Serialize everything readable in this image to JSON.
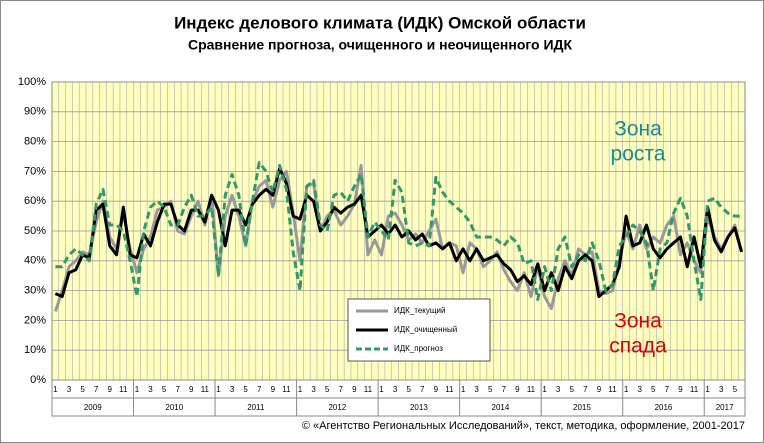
{
  "chart_data": {
    "type": "line",
    "title": "Индекс делового климата (ИДК) Омской области",
    "subtitle": "Сравнение прогноза, очищенного и неочищенного ИДК",
    "categories": [
      "1",
      null,
      "3",
      null,
      "5",
      null,
      "7",
      null,
      "9",
      null,
      "11",
      null,
      "1",
      null,
      "3",
      null,
      "5",
      null,
      "7",
      null,
      "9",
      null,
      "11",
      null,
      "1",
      null,
      "3",
      null,
      "5",
      null,
      "7",
      null,
      "9",
      null,
      "11",
      null,
      "1",
      null,
      "3",
      null,
      "5",
      null,
      "7",
      null,
      "9",
      null,
      "11",
      null,
      "1",
      null,
      "3",
      null,
      "5",
      null,
      "7",
      null,
      "9",
      null,
      "11",
      null,
      "1",
      null,
      "3",
      null,
      "5",
      null,
      "7",
      null,
      "9",
      null,
      "11",
      null,
      "1",
      null,
      "3",
      null,
      "5",
      null,
      "7",
      null,
      "9",
      null,
      "11",
      null,
      "1",
      null,
      "3",
      null,
      "5",
      null,
      "7",
      null,
      "9",
      null,
      "11",
      null,
      "1",
      null,
      "3",
      null,
      "5",
      null
    ],
    "years": [
      "2009",
      "2010",
      "2011",
      "2012",
      "2013",
      "2014",
      "2015",
      "2016",
      "2017"
    ],
    "series": [
      {
        "name": "ИДК_текущий",
        "color": "#999999",
        "dash": false,
        "values": [
          23,
          30,
          38,
          40,
          43,
          42,
          53,
          60,
          48,
          44,
          56,
          44,
          36,
          44,
          48,
          57,
          58,
          60,
          50,
          49,
          55,
          60,
          52,
          62,
          35,
          55,
          62,
          55,
          45,
          60,
          65,
          67,
          58,
          67,
          70,
          56,
          40,
          65,
          66,
          50,
          55,
          57,
          52,
          55,
          59,
          72,
          42,
          47,
          42,
          55,
          56,
          52,
          47,
          49,
          46,
          50,
          54,
          44,
          46,
          45,
          36,
          46,
          44,
          38,
          40,
          43,
          37,
          33,
          30,
          36,
          28,
          38,
          28,
          24,
          34,
          40,
          35,
          44,
          42,
          43,
          30,
          29,
          30,
          40,
          50,
          44,
          52,
          44,
          48,
          46,
          52,
          55,
          42,
          46,
          40,
          36,
          55,
          48,
          44,
          48,
          52,
          43
        ]
      },
      {
        "name": "ИДК_очищенный",
        "color": "#000000",
        "dash": false,
        "values": [
          29,
          28,
          36,
          37,
          42,
          41,
          57,
          59,
          45,
          42,
          58,
          42,
          41,
          49,
          45,
          53,
          59,
          59,
          52,
          50,
          57,
          57,
          53,
          62,
          57,
          45,
          57,
          57,
          52,
          59,
          62,
          64,
          62,
          71,
          66,
          55,
          54,
          62,
          60,
          50,
          53,
          58,
          56,
          58,
          59,
          62,
          48,
          50,
          52,
          49,
          52,
          48,
          50,
          47,
          49,
          45,
          46,
          44,
          46,
          40,
          44,
          40,
          44,
          40,
          41,
          42,
          39,
          37,
          33,
          35,
          32,
          39,
          30,
          36,
          30,
          38,
          34,
          40,
          42,
          40,
          28,
          30,
          32,
          38,
          55,
          45,
          46,
          52,
          44,
          41,
          44,
          46,
          48,
          38,
          48,
          38,
          58,
          47,
          43,
          48,
          51,
          43
        ]
      },
      {
        "name": "ИДК_прогноз",
        "color": "#339966",
        "dash": true,
        "values": [
          38,
          38,
          42,
          44,
          42,
          40,
          59,
          64,
          52,
          52,
          50,
          40,
          28,
          50,
          58,
          60,
          58,
          52,
          52,
          58,
          62,
          55,
          55,
          58,
          35,
          62,
          69,
          62,
          45,
          60,
          73,
          70,
          63,
          72,
          64,
          43,
          30,
          65,
          67,
          52,
          50,
          62,
          63,
          60,
          65,
          69,
          48,
          53,
          50,
          47,
          67,
          63,
          46,
          45,
          46,
          45,
          68,
          63,
          60,
          58,
          56,
          53,
          48,
          48,
          48,
          47,
          45,
          48,
          46,
          39,
          40,
          27,
          38,
          30,
          44,
          48,
          38,
          42,
          40,
          46,
          40,
          30,
          32,
          45,
          48,
          52,
          50,
          46,
          30,
          44,
          46,
          56,
          61,
          55,
          40,
          27,
          60,
          61,
          58,
          56,
          55,
          55
        ]
      }
    ],
    "ylim": [
      0,
      100
    ],
    "yticks": [
      {
        "value": 0,
        "label": "0%"
      },
      {
        "value": 10,
        "label": "10%"
      },
      {
        "value": 20,
        "label": "20%"
      },
      {
        "value": 30,
        "label": "30%"
      },
      {
        "value": 40,
        "label": "40%"
      },
      {
        "value": 50,
        "label": "50%"
      },
      {
        "value": 60,
        "label": "60%"
      },
      {
        "value": 70,
        "label": "70%"
      },
      {
        "value": 80,
        "label": "80%"
      },
      {
        "value": 90,
        "label": "90%"
      },
      {
        "value": 100,
        "label": "100%"
      }
    ],
    "grid": true,
    "annotations": [
      {
        "lines": [
          "Зона",
          "роста"
        ],
        "color": "#1a8a8a"
      },
      {
        "lines": [
          "Зона",
          "спада"
        ],
        "color": "#e00000"
      }
    ],
    "footer": "© «Агентство Региональных Исследований», текст, методика, оформление, 2001-2017"
  }
}
